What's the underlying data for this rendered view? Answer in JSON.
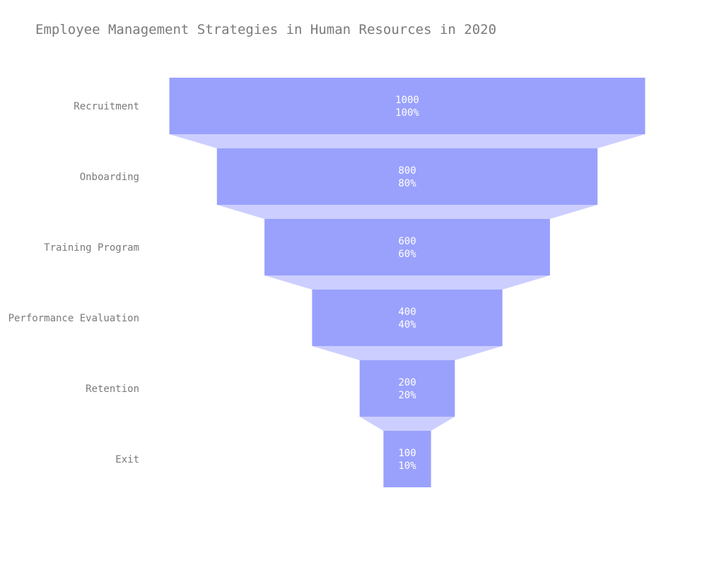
{
  "chart_data": {
    "type": "funnel",
    "title": "Employee Management Strategies in Human Resources in 2020",
    "categories": [
      "Recruitment",
      "Onboarding",
      "Training Program",
      "Performance Evaluation",
      "Retention",
      "Exit"
    ],
    "values": [
      1000,
      800,
      600,
      400,
      200,
      100
    ],
    "percent_labels": [
      "100%",
      "80%",
      "60%",
      "40%",
      "20%",
      "10%"
    ],
    "colors": {
      "bar": "#9aa1fc",
      "connector": "#ccceff",
      "value_text": "#ffffff",
      "label_text": "#7a7a7a"
    }
  }
}
